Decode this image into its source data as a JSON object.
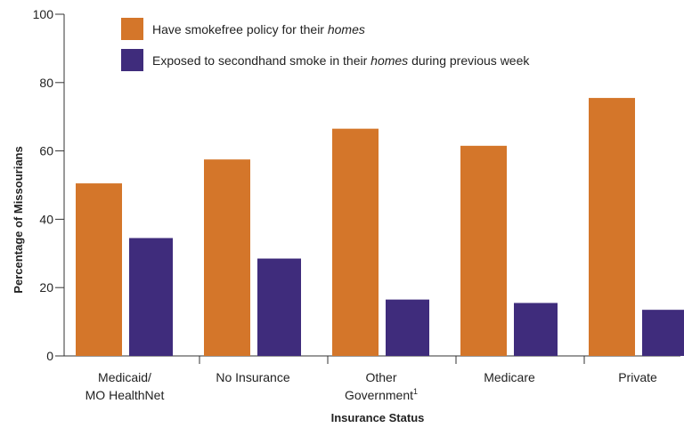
{
  "chart_data": {
    "type": "bar",
    "categories": [
      [
        "Medicaid/",
        "MO HealthNet"
      ],
      [
        "No Insurance"
      ],
      [
        "Other",
        "Government"
      ],
      [
        "Medicare"
      ],
      [
        "Private"
      ]
    ],
    "category_footnotes": [
      "",
      "",
      "1",
      "",
      ""
    ],
    "series": [
      {
        "name": "Have smokefree policy for their homes",
        "legend_parts": [
          {
            "text": "Have smokefree policy for their ",
            "italic": false
          },
          {
            "text": "homes",
            "italic": true
          }
        ],
        "color": "#D4762A",
        "values": [
          50.5,
          57.5,
          66.5,
          61.5,
          75.5
        ]
      },
      {
        "name": "Exposed to secondhand smoke in their homes during previous week",
        "legend_parts": [
          {
            "text": "Exposed to secondhand smoke in their ",
            "italic": false
          },
          {
            "text": "homes",
            "italic": true
          },
          {
            "text": " during previous week",
            "italic": false
          }
        ],
        "color": "#3F2C7C",
        "values": [
          34.5,
          28.5,
          16.5,
          15.5,
          13.5
        ]
      }
    ],
    "xlabel": "Insurance Status",
    "ylabel": "Percentage of Missourians",
    "ylim": [
      0,
      100
    ],
    "yticks": [
      0,
      20,
      40,
      60,
      80,
      100
    ],
    "grid": false,
    "legend_position": "top"
  }
}
